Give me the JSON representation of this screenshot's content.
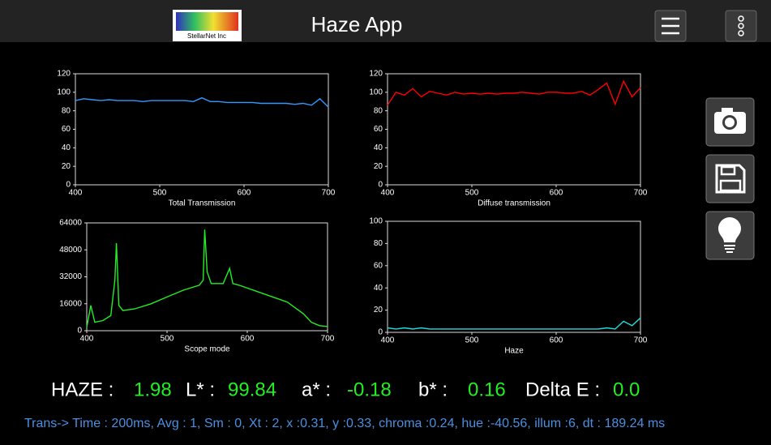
{
  "header": {
    "title": "Haze App",
    "logo": "StellarNet Inc"
  },
  "chart_data": [
    {
      "type": "line",
      "xlabel": "Total Transmission",
      "color": "#3399ff",
      "x": [
        400,
        410,
        420,
        430,
        440,
        450,
        460,
        470,
        480,
        490,
        500,
        510,
        520,
        530,
        540,
        550,
        560,
        570,
        580,
        590,
        600,
        610,
        620,
        630,
        640,
        650,
        660,
        670,
        680,
        690,
        700
      ],
      "values": [
        91,
        93,
        92,
        91,
        92,
        91,
        91,
        91,
        90,
        91,
        91,
        91,
        91,
        91,
        90,
        94,
        90,
        90,
        89,
        89,
        89,
        89,
        88,
        88,
        88,
        88,
        87,
        88,
        86,
        93,
        84
      ],
      "xlim": [
        400,
        700
      ],
      "ylim": [
        0,
        120
      ],
      "xticks": [
        400,
        500,
        600,
        700
      ],
      "yticks": [
        0,
        20,
        40,
        60,
        80,
        100,
        120
      ]
    },
    {
      "type": "line",
      "xlabel": "Diffuse transmission",
      "color": "#ff0000",
      "x": [
        400,
        410,
        420,
        430,
        440,
        450,
        460,
        470,
        480,
        490,
        500,
        510,
        520,
        530,
        540,
        550,
        560,
        570,
        580,
        590,
        600,
        610,
        620,
        630,
        640,
        650,
        660,
        670,
        680,
        690,
        700
      ],
      "values": [
        86,
        100,
        97,
        104,
        95,
        101,
        99,
        97,
        100,
        98,
        99,
        98,
        99,
        98,
        99,
        99,
        100,
        99,
        98,
        100,
        100,
        99,
        99,
        101,
        97,
        103,
        110,
        87,
        112,
        95,
        105
      ],
      "xlim": [
        400,
        700
      ],
      "ylim": [
        0,
        120
      ],
      "xticks": [
        400,
        500,
        600,
        700
      ],
      "yticks": [
        0,
        20,
        40,
        60,
        80,
        100,
        120
      ]
    },
    {
      "type": "line",
      "xlabel": "Scope mode",
      "color": "#22ee22",
      "x": [
        400,
        405,
        410,
        420,
        430,
        435,
        437,
        440,
        445,
        460,
        480,
        500,
        520,
        540,
        545,
        547,
        550,
        555,
        570,
        578,
        582,
        590,
        620,
        650,
        670,
        680,
        690,
        700
      ],
      "values": [
        2000,
        15000,
        5000,
        6000,
        9000,
        30000,
        52000,
        15000,
        12000,
        13000,
        16000,
        20000,
        24000,
        27000,
        30000,
        60000,
        35000,
        28000,
        28000,
        37000,
        28000,
        27000,
        22000,
        17000,
        10000,
        5000,
        3000,
        2500
      ],
      "xlim": [
        400,
        700
      ],
      "ylim": [
        0,
        64000
      ],
      "xticks": [
        400,
        500,
        600,
        700
      ],
      "yticks": [
        0,
        16000,
        32000,
        48000,
        64000
      ]
    },
    {
      "type": "line",
      "xlabel": "Haze",
      "color": "#22dddd",
      "x": [
        400,
        410,
        420,
        430,
        440,
        450,
        460,
        470,
        480,
        490,
        500,
        510,
        520,
        530,
        540,
        550,
        560,
        570,
        580,
        590,
        600,
        610,
        620,
        630,
        640,
        650,
        660,
        670,
        680,
        690,
        700
      ],
      "values": [
        4,
        3,
        4,
        3,
        4,
        3,
        3,
        3,
        3,
        3,
        3,
        3,
        3,
        3,
        3,
        3,
        3,
        3,
        3,
        3,
        3,
        3,
        3,
        3,
        3,
        3,
        4,
        3,
        10,
        6,
        13
      ],
      "xlim": [
        400,
        700
      ],
      "ylim": [
        0,
        100
      ],
      "xticks": [
        400,
        500,
        600,
        700
      ],
      "yticks": [
        0,
        20,
        40,
        60,
        80,
        100
      ]
    }
  ],
  "readout": {
    "haze_label": "HAZE :",
    "haze": "1.98",
    "l_label": "L* :",
    "l": "99.84",
    "a_label": "a* :",
    "a": "-0.18",
    "b_label": "b* :",
    "b": "0.16",
    "de_label": "Delta E :",
    "de": "0.0"
  },
  "status": "Trans-> Time : 200ms,  Avg : 1,  Sm : 0,  Xt : 2, x :0.31, y :0.33, chroma :0.24, hue :-40.56, illum :6,  dt : 189.24 ms"
}
